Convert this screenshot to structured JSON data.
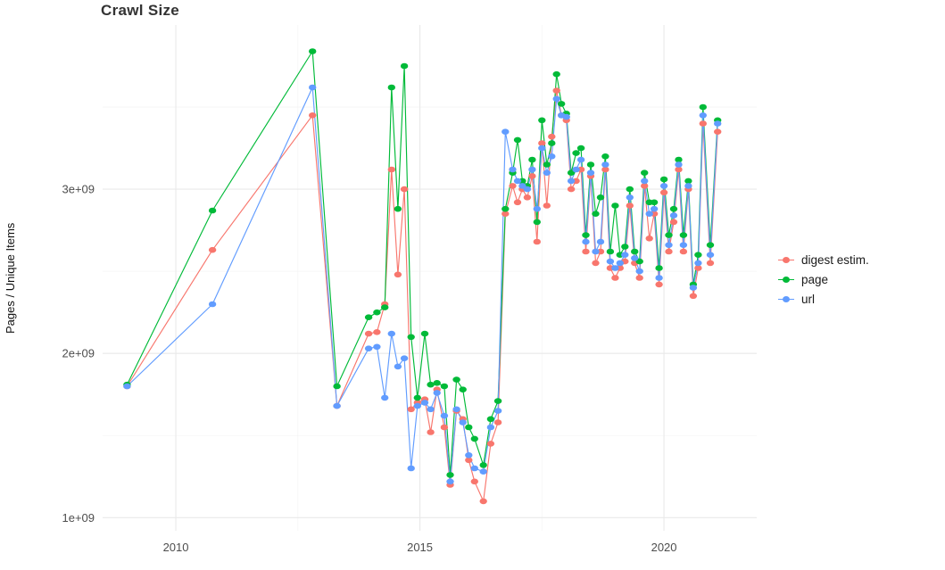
{
  "title": "Crawl Size",
  "axes": {
    "ylabel": "Pages / Unique Items",
    "y_tick_labels": [
      "1e+09",
      "2e+09",
      "3e+09"
    ],
    "x_tick_labels": [
      "2010",
      "2015",
      "2020"
    ]
  },
  "legend": {
    "items": [
      {
        "label": "digest estim.",
        "color": "#F8766D"
      },
      {
        "label": "page",
        "color": "#00BA38"
      },
      {
        "label": "url",
        "color": "#619CFF"
      }
    ]
  },
  "chart_data": {
    "type": "line",
    "title": "Crawl Size",
    "xlabel": "",
    "ylabel": "Pages / Unique Items",
    "xlim": [
      2008.5,
      2021.9
    ],
    "ylim": [
      920000000.0,
      4000000000.0
    ],
    "x_ticks": [
      2010,
      2015,
      2020
    ],
    "x_minor_ticks": [
      2012.5,
      2017.5
    ],
    "y_ticks": [
      1000000000.0,
      2000000000.0,
      3000000000.0
    ],
    "y_minor_ticks": [
      1500000000.0,
      2500000000.0,
      3500000000.0
    ],
    "grid": true,
    "legend_position": "right",
    "x": [
      2009.0,
      2010.75,
      2012.8,
      2013.3,
      2013.95,
      2014.12,
      2014.28,
      2014.42,
      2014.55,
      2014.68,
      2014.82,
      2014.95,
      2015.1,
      2015.22,
      2015.35,
      2015.5,
      2015.62,
      2015.75,
      2015.88,
      2016.0,
      2016.12,
      2016.3,
      2016.45,
      2016.6,
      2016.75,
      2016.9,
      2017.0,
      2017.1,
      2017.2,
      2017.3,
      2017.4,
      2017.5,
      2017.6,
      2017.7,
      2017.8,
      2017.9,
      2018.0,
      2018.1,
      2018.2,
      2018.3,
      2018.4,
      2018.5,
      2018.6,
      2018.7,
      2018.8,
      2018.9,
      2019.0,
      2019.1,
      2019.2,
      2019.3,
      2019.4,
      2019.5,
      2019.6,
      2019.7,
      2019.8,
      2019.9,
      2020.0,
      2020.1,
      2020.2,
      2020.3,
      2020.4,
      2020.5,
      2020.6,
      2020.7,
      2020.8,
      2020.95,
      2021.1
    ],
    "series": [
      {
        "name": "digest estim.",
        "color": "#F8766D",
        "values": [
          1800000000.0,
          2630000000.0,
          3450000000.0,
          1680000000.0,
          2120000000.0,
          2130000000.0,
          2300000000.0,
          3120000000.0,
          2480000000.0,
          3000000000.0,
          1660000000.0,
          1700000000.0,
          1720000000.0,
          1520000000.0,
          1780000000.0,
          1550000000.0,
          1200000000.0,
          1650000000.0,
          1600000000.0,
          1350000000.0,
          1220000000.0,
          1100000000.0,
          1450000000.0,
          1580000000.0,
          2850000000.0,
          3020000000.0,
          2920000000.0,
          3000000000.0,
          2950000000.0,
          3080000000.0,
          2680000000.0,
          3280000000.0,
          2900000000.0,
          3320000000.0,
          3600000000.0,
          3450000000.0,
          3420000000.0,
          3000000000.0,
          3050000000.0,
          3120000000.0,
          2620000000.0,
          3080000000.0,
          2550000000.0,
          2620000000.0,
          3120000000.0,
          2520000000.0,
          2460000000.0,
          2520000000.0,
          2560000000.0,
          2900000000.0,
          2550000000.0,
          2460000000.0,
          3020000000.0,
          2700000000.0,
          2850000000.0,
          2420000000.0,
          2980000000.0,
          2620000000.0,
          2800000000.0,
          3120000000.0,
          2620000000.0,
          3000000000.0,
          2350000000.0,
          2520000000.0,
          3400000000.0,
          2550000000.0,
          3350000000.0
        ]
      },
      {
        "name": "page",
        "color": "#00BA38",
        "values": [
          1810000000.0,
          2870000000.0,
          3840000000.0,
          1800000000.0,
          2220000000.0,
          2250000000.0,
          2280000000.0,
          3620000000.0,
          2880000000.0,
          3750000000.0,
          2100000000.0,
          1730000000.0,
          2120000000.0,
          1810000000.0,
          1820000000.0,
          1800000000.0,
          1260000000.0,
          1840000000.0,
          1780000000.0,
          1550000000.0,
          1480000000.0,
          1320000000.0,
          1600000000.0,
          1710000000.0,
          2880000000.0,
          3100000000.0,
          3300000000.0,
          3050000000.0,
          3020000000.0,
          3180000000.0,
          2800000000.0,
          3420000000.0,
          3150000000.0,
          3280000000.0,
          3700000000.0,
          3520000000.0,
          3460000000.0,
          3100000000.0,
          3220000000.0,
          3250000000.0,
          2720000000.0,
          3150000000.0,
          2850000000.0,
          2950000000.0,
          3200000000.0,
          2620000000.0,
          2900000000.0,
          2600000000.0,
          2650000000.0,
          3000000000.0,
          2620000000.0,
          2560000000.0,
          3100000000.0,
          2920000000.0,
          2920000000.0,
          2520000000.0,
          3060000000.0,
          2720000000.0,
          2880000000.0,
          3180000000.0,
          2720000000.0,
          3050000000.0,
          2420000000.0,
          2600000000.0,
          3500000000.0,
          2660000000.0,
          3420000000.0
        ]
      },
      {
        "name": "url",
        "color": "#619CFF",
        "values": [
          1800000000.0,
          2300000000.0,
          3620000000.0,
          1680000000.0,
          2030000000.0,
          2040000000.0,
          1730000000.0,
          2120000000.0,
          1920000000.0,
          1970000000.0,
          1300000000.0,
          1680000000.0,
          1700000000.0,
          1660000000.0,
          1760000000.0,
          1620000000.0,
          1220000000.0,
          1660000000.0,
          1580000000.0,
          1380000000.0,
          1300000000.0,
          1280000000.0,
          1550000000.0,
          1650000000.0,
          3350000000.0,
          3120000000.0,
          3050000000.0,
          3020000000.0,
          3000000000.0,
          3120000000.0,
          2880000000.0,
          3250000000.0,
          3100000000.0,
          3200000000.0,
          3550000000.0,
          3450000000.0,
          3440000000.0,
          3050000000.0,
          3120000000.0,
          3180000000.0,
          2680000000.0,
          3100000000.0,
          2620000000.0,
          2680000000.0,
          3150000000.0,
          2560000000.0,
          2520000000.0,
          2550000000.0,
          2600000000.0,
          2950000000.0,
          2580000000.0,
          2500000000.0,
          3050000000.0,
          2850000000.0,
          2880000000.0,
          2460000000.0,
          3020000000.0,
          2660000000.0,
          2840000000.0,
          3150000000.0,
          2660000000.0,
          3020000000.0,
          2400000000.0,
          2550000000.0,
          3450000000.0,
          2600000000.0,
          3400000000.0
        ]
      }
    ]
  }
}
